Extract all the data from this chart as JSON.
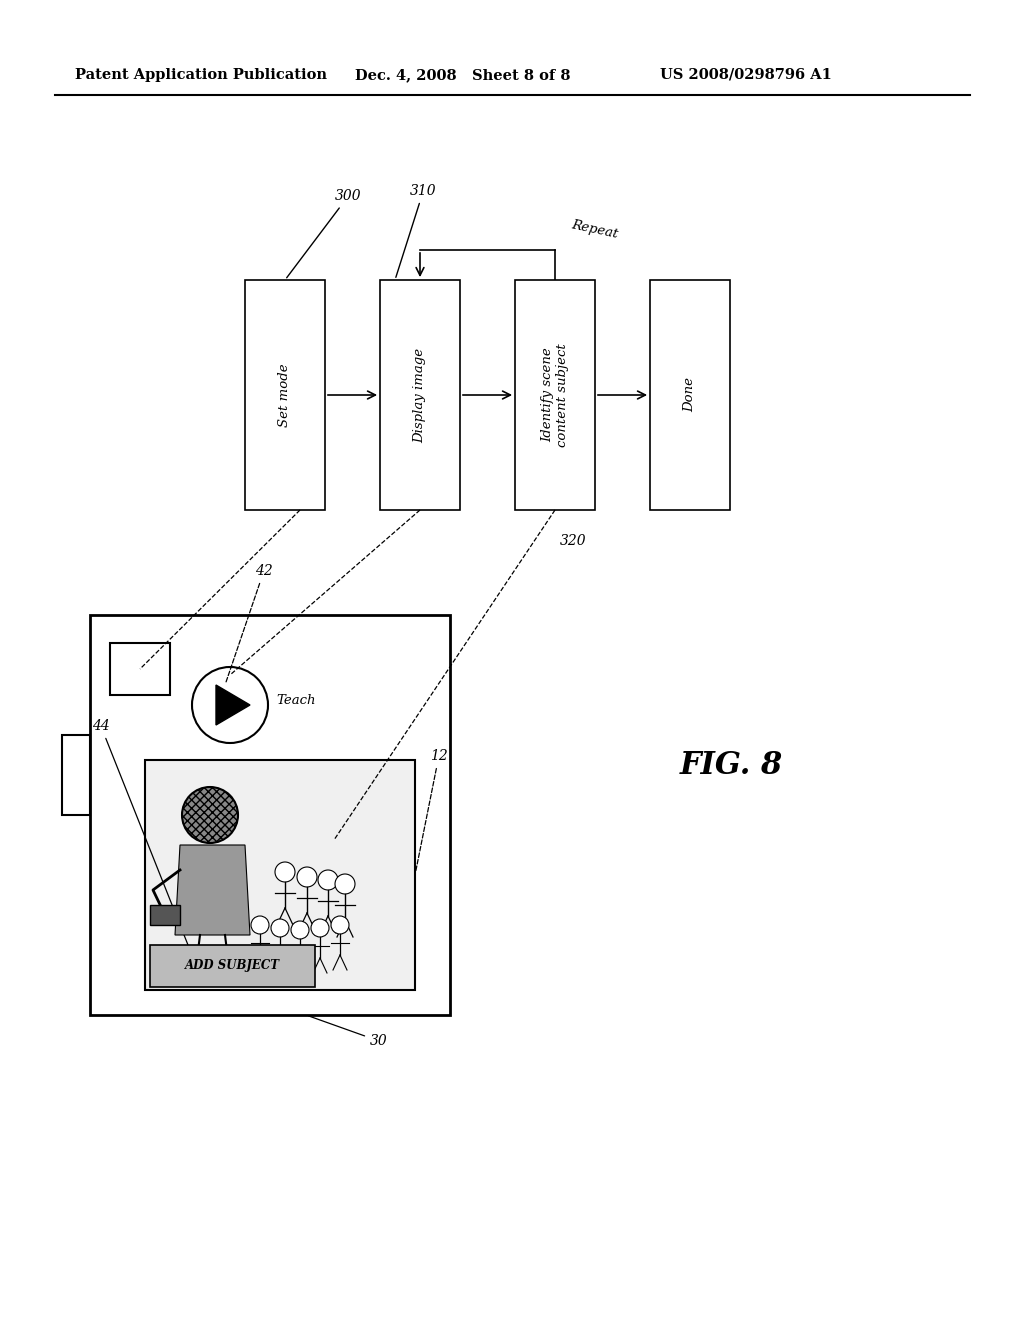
{
  "bg_color": "#ffffff",
  "header_left": "Patent Application Publication",
  "header_mid": "Dec. 4, 2008   Sheet 8 of 8",
  "header_right": "US 2008/0298796 A1",
  "fig_label": "FIG. 8",
  "page_width": 10.24,
  "page_height": 13.2
}
